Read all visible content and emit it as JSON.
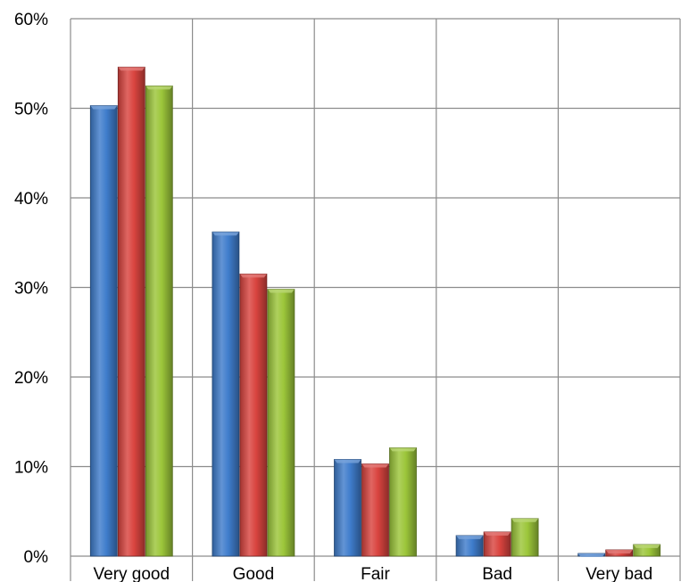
{
  "chart_data": {
    "type": "bar",
    "categories": [
      "Very good",
      "Good",
      "Fair",
      "Bad",
      "Very bad"
    ],
    "series": [
      {
        "color": "#3f7dcc",
        "values": [
          50.3,
          36.2,
          10.8,
          2.3,
          0.3
        ]
      },
      {
        "color": "#d9443f",
        "values": [
          54.6,
          31.5,
          10.3,
          2.7,
          0.7
        ]
      },
      {
        "color": "#9cc63a",
        "values": [
          52.5,
          29.8,
          12.1,
          4.2,
          1.3
        ]
      }
    ],
    "ylim": [
      0,
      60
    ],
    "yticks": [
      0,
      10,
      20,
      30,
      40,
      50,
      60
    ],
    "ytick_format": "percent",
    "grid": true,
    "legend": "none"
  }
}
